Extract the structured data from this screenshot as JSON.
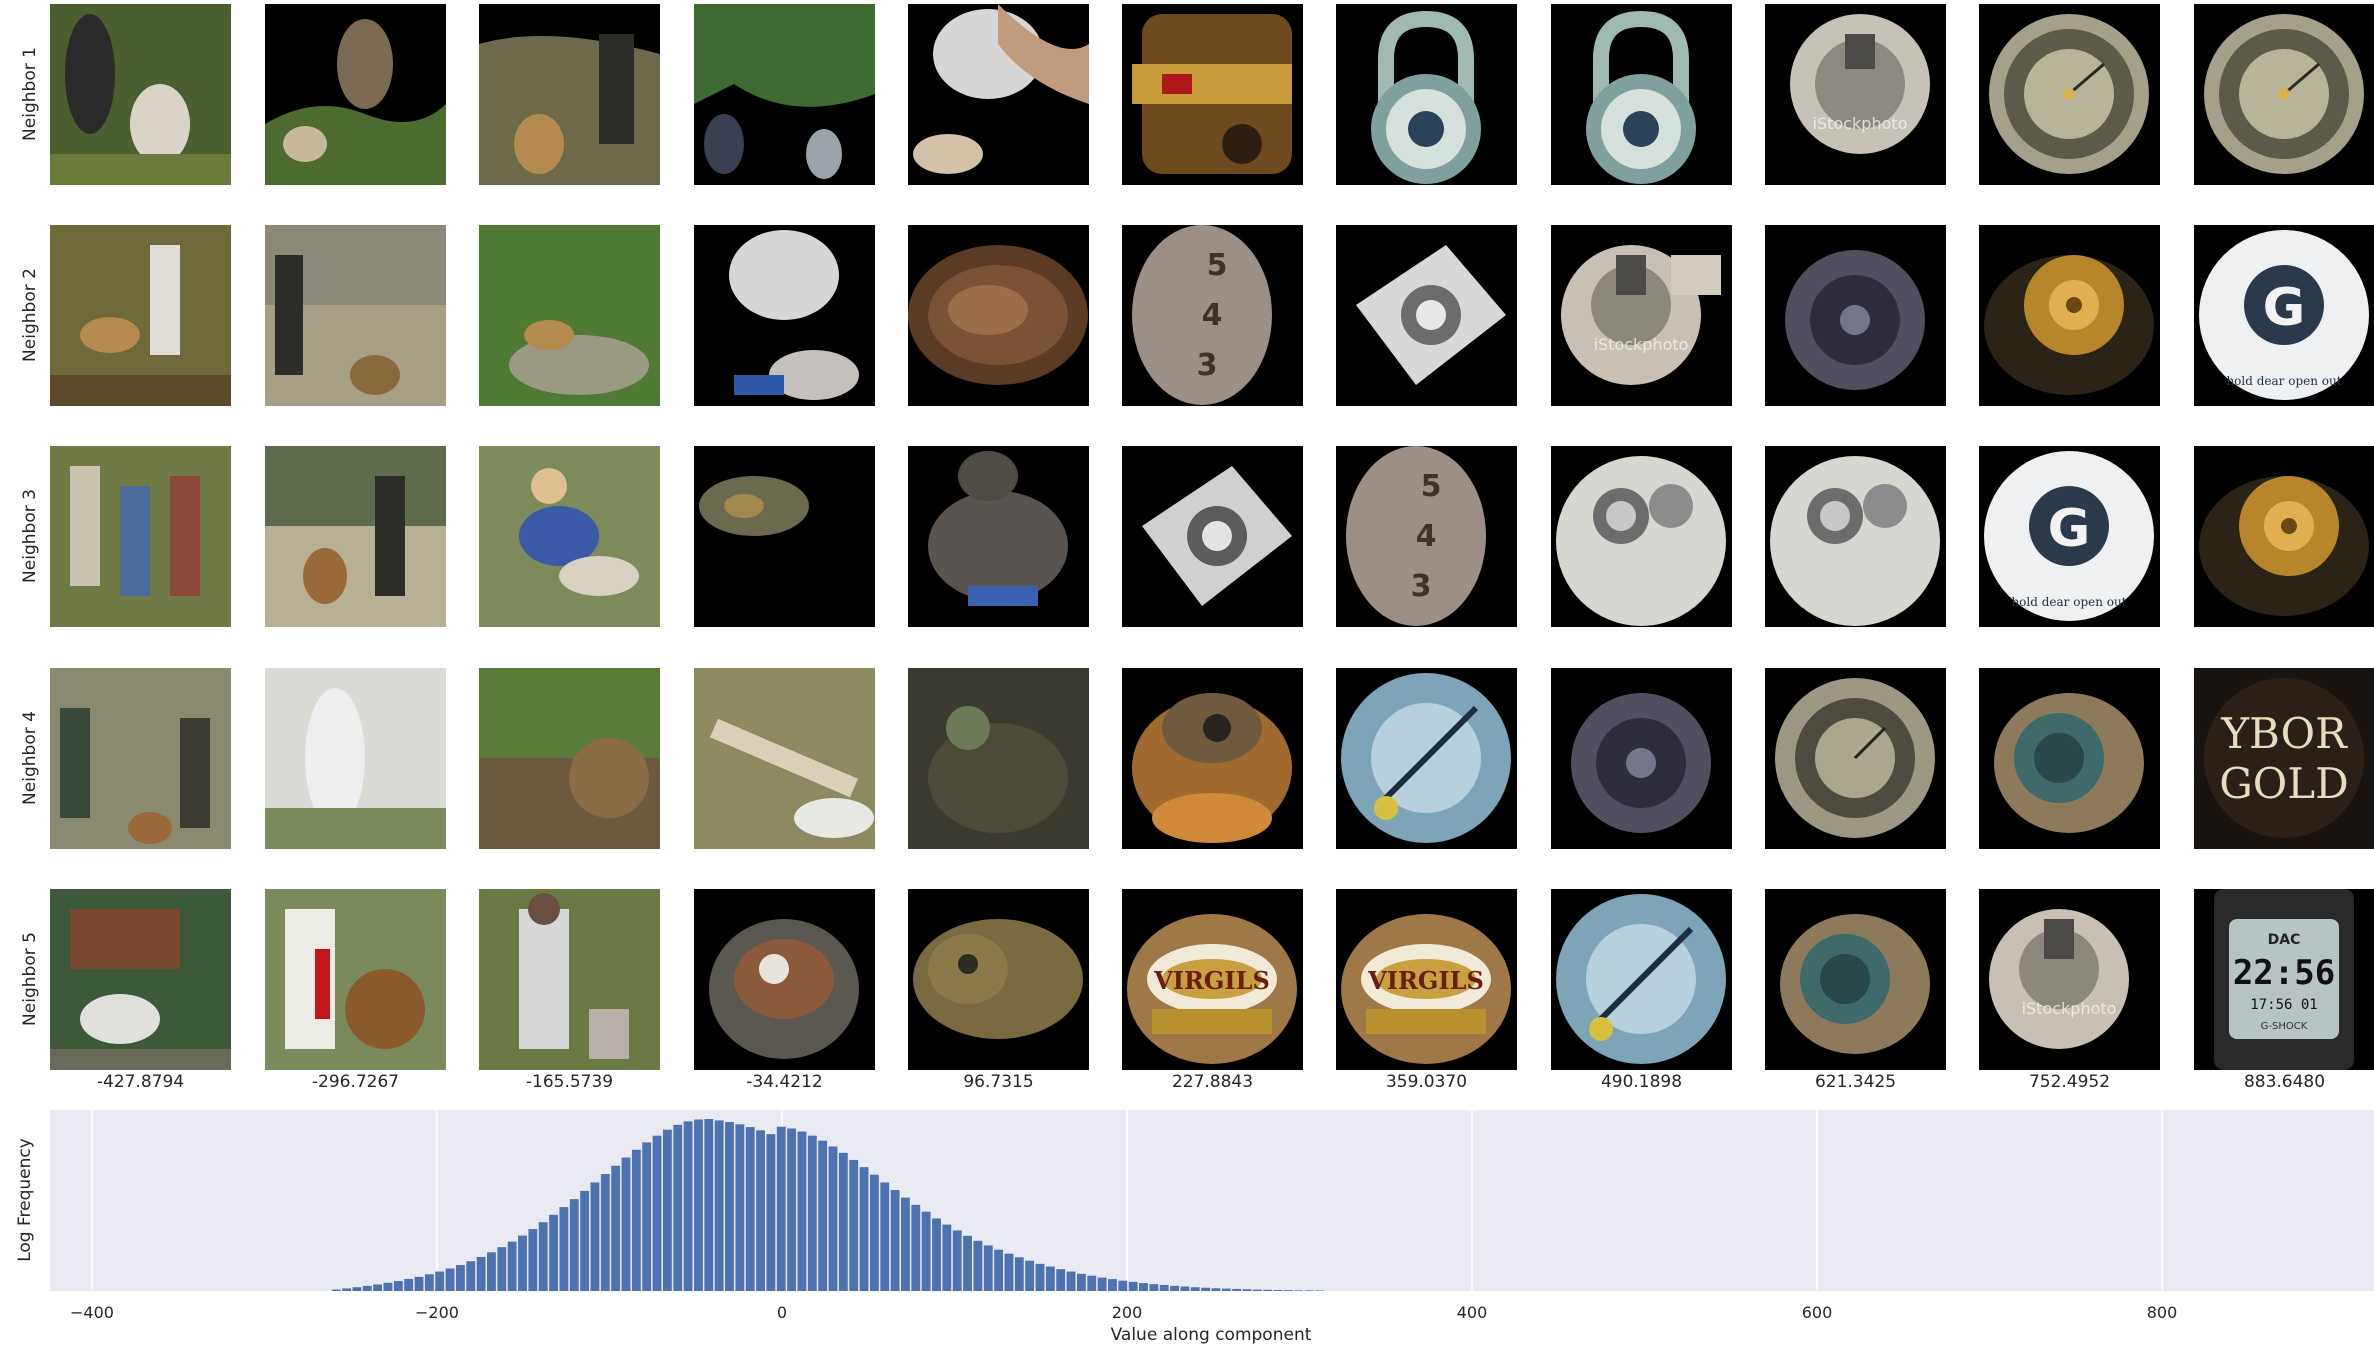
{
  "rows": [
    "Neighbor 1",
    "Neighbor 2",
    "Neighbor 3",
    "Neighbor 4",
    "Neighbor 5"
  ],
  "columns": [
    "-427.8794",
    "-296.7267",
    "-165.5739",
    "-34.4212",
    "96.7315",
    "227.8843",
    "359.0370",
    "490.1898",
    "621.3425",
    "752.4952",
    "883.6480"
  ],
  "tile_text": {
    "watermark": "iStockphoto",
    "logo_virgils": "VIRGILS",
    "logo_g": "G",
    "ybor_line1": "YBOR",
    "ybor_line2": "GOLD",
    "watch_line1": "DAC",
    "watch_time": "22:56",
    "watch_seconds": "17:56 01",
    "watch_brand": "G-SHOCK",
    "lock_digits": [
      "5",
      "4",
      "3"
    ],
    "bottle_cap_text": "hold dear open out"
  },
  "chart_data": {
    "type": "bar",
    "xlabel": "Value along component",
    "ylabel": "Log Frequency",
    "xlim": [
      -430,
      930
    ],
    "xticks": [
      -400,
      -200,
      0,
      200,
      400,
      600,
      800
    ],
    "grid": true,
    "bar_color": "#4c72b0",
    "background": "#eaeaf2",
    "bin_width": 6,
    "bins": [
      {
        "x": -258,
        "y": 0.08
      },
      {
        "x": -252,
        "y": 0.15
      },
      {
        "x": -246,
        "y": 0.22
      },
      {
        "x": -240,
        "y": 0.3
      },
      {
        "x": -234,
        "y": 0.38
      },
      {
        "x": -228,
        "y": 0.48
      },
      {
        "x": -222,
        "y": 0.58
      },
      {
        "x": -216,
        "y": 0.7
      },
      {
        "x": -210,
        "y": 0.82
      },
      {
        "x": -204,
        "y": 0.97
      },
      {
        "x": -198,
        "y": 1.13
      },
      {
        "x": -192,
        "y": 1.31
      },
      {
        "x": -186,
        "y": 1.51
      },
      {
        "x": -180,
        "y": 1.73
      },
      {
        "x": -174,
        "y": 1.98
      },
      {
        "x": -168,
        "y": 2.25
      },
      {
        "x": -162,
        "y": 2.55
      },
      {
        "x": -156,
        "y": 2.87
      },
      {
        "x": -150,
        "y": 3.22
      },
      {
        "x": -144,
        "y": 3.6
      },
      {
        "x": -138,
        "y": 4.0
      },
      {
        "x": -132,
        "y": 4.43
      },
      {
        "x": -126,
        "y": 4.88
      },
      {
        "x": -120,
        "y": 5.34
      },
      {
        "x": -114,
        "y": 5.82
      },
      {
        "x": -108,
        "y": 6.31
      },
      {
        "x": -102,
        "y": 6.8
      },
      {
        "x": -96,
        "y": 7.28
      },
      {
        "x": -90,
        "y": 7.76
      },
      {
        "x": -84,
        "y": 8.21
      },
      {
        "x": -78,
        "y": 8.64
      },
      {
        "x": -72,
        "y": 9.03
      },
      {
        "x": -66,
        "y": 9.38
      },
      {
        "x": -60,
        "y": 9.66
      },
      {
        "x": -54,
        "y": 9.86
      },
      {
        "x": -48,
        "y": 9.97
      },
      {
        "x": -42,
        "y": 10.0
      },
      {
        "x": -36,
        "y": 9.92
      },
      {
        "x": -30,
        "y": 9.82
      },
      {
        "x": -24,
        "y": 9.69
      },
      {
        "x": -18,
        "y": 9.53
      },
      {
        "x": -12,
        "y": 9.34
      },
      {
        "x": -6,
        "y": 9.12
      },
      {
        "x": 0,
        "y": 9.55
      },
      {
        "x": 6,
        "y": 9.45
      },
      {
        "x": 12,
        "y": 9.27
      },
      {
        "x": 18,
        "y": 9.03
      },
      {
        "x": 24,
        "y": 8.74
      },
      {
        "x": 30,
        "y": 8.4
      },
      {
        "x": 36,
        "y": 8.03
      },
      {
        "x": 42,
        "y": 7.62
      },
      {
        "x": 48,
        "y": 7.2
      },
      {
        "x": 54,
        "y": 6.76
      },
      {
        "x": 60,
        "y": 6.31
      },
      {
        "x": 66,
        "y": 5.87
      },
      {
        "x": 72,
        "y": 5.43
      },
      {
        "x": 78,
        "y": 5.01
      },
      {
        "x": 84,
        "y": 4.61
      },
      {
        "x": 90,
        "y": 4.22
      },
      {
        "x": 96,
        "y": 3.86
      },
      {
        "x": 102,
        "y": 3.52
      },
      {
        "x": 108,
        "y": 3.21
      },
      {
        "x": 114,
        "y": 2.92
      },
      {
        "x": 120,
        "y": 2.65
      },
      {
        "x": 126,
        "y": 2.4
      },
      {
        "x": 132,
        "y": 2.17
      },
      {
        "x": 138,
        "y": 1.96
      },
      {
        "x": 144,
        "y": 1.76
      },
      {
        "x": 150,
        "y": 1.58
      },
      {
        "x": 156,
        "y": 1.42
      },
      {
        "x": 162,
        "y": 1.27
      },
      {
        "x": 168,
        "y": 1.13
      },
      {
        "x": 174,
        "y": 1.0
      },
      {
        "x": 180,
        "y": 0.89
      },
      {
        "x": 186,
        "y": 0.78
      },
      {
        "x": 192,
        "y": 0.69
      },
      {
        "x": 198,
        "y": 0.6
      },
      {
        "x": 204,
        "y": 0.53
      },
      {
        "x": 210,
        "y": 0.46
      },
      {
        "x": 216,
        "y": 0.4
      },
      {
        "x": 222,
        "y": 0.35
      },
      {
        "x": 228,
        "y": 0.3
      },
      {
        "x": 234,
        "y": 0.26
      },
      {
        "x": 240,
        "y": 0.22
      },
      {
        "x": 246,
        "y": 0.19
      },
      {
        "x": 252,
        "y": 0.16
      },
      {
        "x": 258,
        "y": 0.14
      },
      {
        "x": 264,
        "y": 0.12
      },
      {
        "x": 270,
        "y": 0.1
      },
      {
        "x": 276,
        "y": 0.08
      },
      {
        "x": 282,
        "y": 0.07
      },
      {
        "x": 288,
        "y": 0.06
      },
      {
        "x": 294,
        "y": 0.05
      },
      {
        "x": 300,
        "y": 0.04
      },
      {
        "x": 306,
        "y": 0.04
      },
      {
        "x": 312,
        "y": 0.03
      }
    ]
  }
}
